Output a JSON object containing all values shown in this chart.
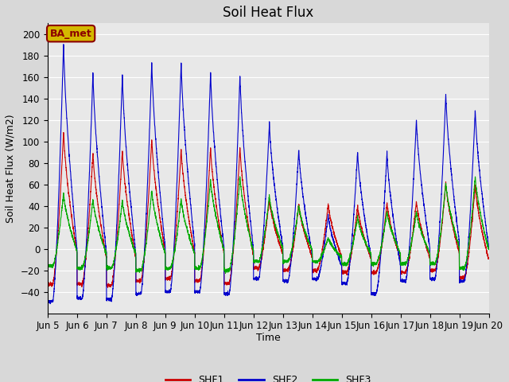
{
  "title": "Soil Heat Flux",
  "ylabel": "Soil Heat Flux (W/m2)",
  "xlabel": "Time",
  "ylim": [
    -60,
    210
  ],
  "yticks": [
    -40,
    -20,
    0,
    20,
    40,
    60,
    80,
    100,
    120,
    140,
    160,
    180,
    200
  ],
  "background_color": "#d8d8d8",
  "plot_bg_color": "#e8e8e8",
  "annotation_text": "BA_met",
  "annotation_bg": "#d4b800",
  "annotation_border": "#8b0000",
  "line_colors": {
    "SHF1": "#cc0000",
    "SHF2": "#0000cc",
    "SHF3": "#00aa00"
  },
  "start_day": 5,
  "end_day": 20,
  "num_days": 15,
  "pts_per_day": 288,
  "shf1_daily_peaks": [
    110,
    90,
    93,
    103,
    93,
    95,
    95,
    47,
    42,
    42,
    40,
    43,
    45,
    62,
    60
  ],
  "shf2_daily_peaks": [
    192,
    165,
    163,
    175,
    175,
    165,
    163,
    117,
    93,
    32,
    91,
    90,
    121,
    145,
    130
  ],
  "shf3_daily_peaks": [
    52,
    47,
    46,
    55,
    47,
    65,
    68,
    50,
    41,
    10,
    30,
    35,
    35,
    62,
    68
  ],
  "shf1_daily_mins": [
    -33,
    -33,
    -34,
    -30,
    -28,
    -30,
    -32,
    -18,
    -20,
    -20,
    -22,
    -22,
    -22,
    -20,
    -27
  ],
  "shf2_daily_mins": [
    -49,
    -46,
    -47,
    -42,
    -40,
    -40,
    -42,
    -28,
    -30,
    -28,
    -32,
    -42,
    -30,
    -28,
    -30
  ],
  "shf3_daily_mins": [
    -16,
    -18,
    -18,
    -20,
    -18,
    -18,
    -20,
    -12,
    -12,
    -12,
    -14,
    -14,
    -14,
    -14,
    -18
  ],
  "title_fontsize": 12,
  "label_fontsize": 9,
  "tick_fontsize": 8.5,
  "legend_fontsize": 9
}
